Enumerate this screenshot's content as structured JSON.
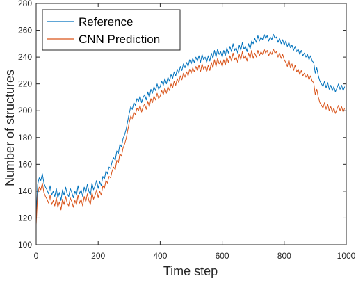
{
  "chart_data": {
    "type": "line",
    "title": "",
    "xlabel": "Time step",
    "ylabel": "Number of structures",
    "xlim": [
      0,
      1000
    ],
    "ylim": [
      100,
      280
    ],
    "xticks": [
      0,
      200,
      400,
      600,
      800,
      1000
    ],
    "yticks": [
      100,
      120,
      140,
      160,
      180,
      200,
      220,
      240,
      260,
      280
    ],
    "grid": false,
    "legend_position": "top-left",
    "series": [
      {
        "name": "Reference",
        "color": "#0072BD",
        "x": [
          0,
          5,
          10,
          15,
          20,
          25,
          30,
          35,
          40,
          45,
          50,
          55,
          60,
          65,
          70,
          75,
          80,
          85,
          90,
          95,
          100,
          105,
          110,
          115,
          120,
          125,
          130,
          135,
          140,
          145,
          150,
          155,
          160,
          165,
          170,
          175,
          180,
          185,
          190,
          195,
          200,
          205,
          210,
          215,
          220,
          225,
          230,
          235,
          240,
          245,
          250,
          255,
          260,
          265,
          270,
          275,
          280,
          285,
          290,
          295,
          300,
          305,
          310,
          315,
          320,
          325,
          330,
          335,
          340,
          345,
          350,
          355,
          360,
          365,
          370,
          375,
          380,
          385,
          390,
          395,
          400,
          405,
          410,
          415,
          420,
          425,
          430,
          435,
          440,
          445,
          450,
          455,
          460,
          465,
          470,
          475,
          480,
          485,
          490,
          495,
          500,
          505,
          510,
          515,
          520,
          525,
          530,
          535,
          540,
          545,
          550,
          555,
          560,
          565,
          570,
          575,
          580,
          585,
          590,
          595,
          600,
          605,
          610,
          615,
          620,
          625,
          630,
          635,
          640,
          645,
          650,
          655,
          660,
          665,
          670,
          675,
          680,
          685,
          690,
          695,
          700,
          705,
          710,
          715,
          720,
          725,
          730,
          735,
          740,
          745,
          750,
          755,
          760,
          765,
          770,
          775,
          780,
          785,
          790,
          795,
          800,
          805,
          810,
          815,
          820,
          825,
          830,
          835,
          840,
          845,
          850,
          855,
          860,
          865,
          870,
          875,
          880,
          885,
          890,
          895,
          900,
          905,
          910,
          915,
          920,
          925,
          930,
          935,
          940,
          945,
          950,
          955,
          960,
          965,
          970,
          975,
          980,
          985,
          990,
          995
        ],
        "y": [
          122,
          145,
          150,
          148,
          153,
          146,
          143,
          141,
          138,
          144,
          137,
          140,
          136,
          142,
          135,
          139,
          133,
          141,
          137,
          143,
          138,
          136,
          142,
          139,
          135,
          140,
          137,
          144,
          138,
          141,
          136,
          143,
          139,
          145,
          140,
          137,
          146,
          141,
          144,
          148,
          142,
          147,
          144,
          151,
          149,
          155,
          153,
          158,
          157,
          162,
          165,
          163,
          170,
          168,
          175,
          173,
          179,
          182,
          186,
          192,
          198,
          203,
          201,
          206,
          204,
          209,
          207,
          211,
          206,
          210,
          212,
          208,
          214,
          210,
          216,
          213,
          218,
          215,
          220,
          216,
          218,
          222,
          219,
          224,
          220,
          225,
          222,
          227,
          224,
          229,
          226,
          231,
          228,
          233,
          230,
          235,
          232,
          236,
          233,
          238,
          235,
          239,
          236,
          240,
          237,
          241,
          236,
          242,
          238,
          240,
          236,
          241,
          237,
          243,
          239,
          245,
          240,
          246,
          242,
          244,
          240,
          245,
          241,
          247,
          243,
          248,
          244,
          250,
          245,
          247,
          243,
          249,
          245,
          251,
          246,
          248,
          244,
          250,
          246,
          252,
          250,
          254,
          251,
          256,
          252,
          255,
          253,
          257,
          254,
          256,
          252,
          255,
          253,
          257,
          254,
          255,
          251,
          254,
          250,
          253,
          249,
          252,
          248,
          251,
          247,
          249,
          245,
          248,
          244,
          246,
          242,
          245,
          241,
          243,
          240,
          242,
          238,
          241,
          237,
          236,
          228,
          232,
          226,
          222,
          220,
          218,
          222,
          217,
          221,
          216,
          219,
          215,
          218,
          214,
          217,
          220,
          216,
          219,
          215,
          218
        ]
      },
      {
        "name": "CNN Prediction",
        "color": "#D95319",
        "x": [
          0,
          5,
          10,
          15,
          20,
          25,
          30,
          35,
          40,
          45,
          50,
          55,
          60,
          65,
          70,
          75,
          80,
          85,
          90,
          95,
          100,
          105,
          110,
          115,
          120,
          125,
          130,
          135,
          140,
          145,
          150,
          155,
          160,
          165,
          170,
          175,
          180,
          185,
          190,
          195,
          200,
          205,
          210,
          215,
          220,
          225,
          230,
          235,
          240,
          245,
          250,
          255,
          260,
          265,
          270,
          275,
          280,
          285,
          290,
          295,
          300,
          305,
          310,
          315,
          320,
          325,
          330,
          335,
          340,
          345,
          350,
          355,
          360,
          365,
          370,
          375,
          380,
          385,
          390,
          395,
          400,
          405,
          410,
          415,
          420,
          425,
          430,
          435,
          440,
          445,
          450,
          455,
          460,
          465,
          470,
          475,
          480,
          485,
          490,
          495,
          500,
          505,
          510,
          515,
          520,
          525,
          530,
          535,
          540,
          545,
          550,
          555,
          560,
          565,
          570,
          575,
          580,
          585,
          590,
          595,
          600,
          605,
          610,
          615,
          620,
          625,
          630,
          635,
          640,
          645,
          650,
          655,
          660,
          665,
          670,
          675,
          680,
          685,
          690,
          695,
          700,
          705,
          710,
          715,
          720,
          725,
          730,
          735,
          740,
          745,
          750,
          755,
          760,
          765,
          770,
          775,
          780,
          785,
          790,
          795,
          800,
          805,
          810,
          815,
          820,
          825,
          830,
          835,
          840,
          845,
          850,
          855,
          860,
          865,
          870,
          875,
          880,
          885,
          890,
          895,
          900,
          905,
          910,
          915,
          920,
          925,
          930,
          935,
          940,
          945,
          950,
          955,
          960,
          965,
          970,
          975,
          980,
          985,
          990,
          995
        ],
        "y": [
          115,
          138,
          143,
          141,
          146,
          139,
          136,
          134,
          131,
          137,
          130,
          133,
          129,
          135,
          128,
          132,
          126,
          134,
          130,
          136,
          131,
          129,
          135,
          132,
          128,
          133,
          130,
          137,
          131,
          134,
          129,
          136,
          132,
          138,
          133,
          130,
          139,
          134,
          137,
          141,
          135,
          140,
          137,
          144,
          142,
          148,
          146,
          151,
          150,
          155,
          158,
          156,
          163,
          161,
          168,
          166,
          172,
          175,
          179,
          185,
          191,
          196,
          194,
          199,
          197,
          202,
          200,
          204,
          199,
          203,
          205,
          201,
          207,
          203,
          209,
          206,
          211,
          208,
          213,
          209,
          211,
          215,
          212,
          217,
          213,
          218,
          215,
          220,
          217,
          222,
          219,
          224,
          221,
          226,
          223,
          228,
          225,
          229,
          226,
          231,
          228,
          232,
          229,
          233,
          230,
          234,
          229,
          235,
          231,
          233,
          229,
          234,
          230,
          236,
          232,
          238,
          233,
          239,
          235,
          237,
          233,
          238,
          234,
          240,
          236,
          241,
          237,
          243,
          238,
          240,
          236,
          242,
          238,
          244,
          239,
          241,
          237,
          243,
          239,
          245,
          239,
          243,
          240,
          245,
          241,
          244,
          242,
          246,
          243,
          245,
          241,
          244,
          242,
          246,
          243,
          244,
          240,
          243,
          239,
          242,
          238,
          236,
          233,
          238,
          232,
          235,
          230,
          234,
          229,
          231,
          227,
          230,
          226,
          228,
          225,
          227,
          223,
          226,
          222,
          221,
          212,
          216,
          210,
          206,
          204,
          202,
          206,
          201,
          205,
          200,
          203,
          199,
          202,
          198,
          201,
          204,
          200,
          203,
          199,
          202
        ]
      }
    ]
  }
}
